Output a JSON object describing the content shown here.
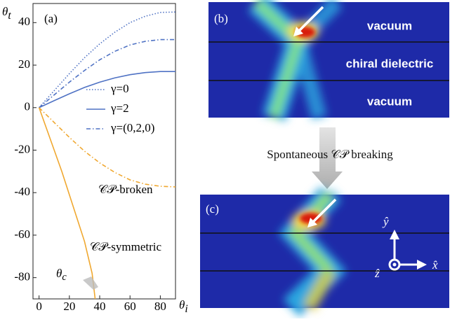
{
  "chart_data": {
    "type": "line",
    "panel_label": "(a)",
    "x_label": {
      "main": "θ",
      "sub": "i"
    },
    "y_label": {
      "main": "θ",
      "sub": "t"
    },
    "xlim": [
      -4,
      90
    ],
    "ylim": [
      -90,
      49
    ],
    "xticks": [
      0,
      20,
      40,
      60,
      80
    ],
    "yticks": [
      40,
      20,
      0,
      -20,
      -40,
      -60,
      -80
    ],
    "series": [
      {
        "name": "γ=0",
        "color": "#4f72c4",
        "style": "dotted",
        "x": [
          0,
          10,
          20,
          30,
          40,
          50,
          60,
          70,
          80,
          90
        ],
        "values": [
          0,
          8,
          16,
          23.5,
          30,
          35.5,
          40,
          43,
          44.8,
          45
        ]
      },
      {
        "name": "γ=2",
        "color": "#4f72c4",
        "style": "solid",
        "x": [
          0,
          10,
          20,
          30,
          40,
          50,
          60,
          70,
          80,
          90
        ],
        "values": [
          0,
          3.3,
          6.5,
          9.5,
          12,
          14,
          15.5,
          16.5,
          17,
          17
        ]
      },
      {
        "name": "γ=(0,2,0)",
        "color": "#4f72c4",
        "style": "dashdot",
        "x": [
          0,
          10,
          20,
          30,
          40,
          50,
          60,
          70,
          80,
          90
        ],
        "values": [
          0,
          6,
          12,
          17.5,
          22.5,
          26.5,
          29.5,
          31.2,
          32,
          32
        ]
      },
      {
        "color": "#f0a830",
        "style": "dashdot",
        "x": [
          0,
          10,
          20,
          30,
          40,
          50,
          60,
          70,
          80,
          90
        ],
        "values": [
          0,
          -7,
          -14,
          -20.5,
          -26,
          -30.5,
          -34,
          -36,
          -37,
          -37.3
        ]
      },
      {
        "color": "#f0a830",
        "style": "solid",
        "x": [
          0,
          5,
          10,
          15,
          20,
          25,
          30,
          35,
          37
        ],
        "values": [
          0,
          -10,
          -20,
          -30,
          -41,
          -52,
          -63,
          -78,
          -90
        ]
      }
    ],
    "annotations": [
      "𝒞𝒫-broken",
      "𝒞𝒫-symmetric"
    ],
    "critical_label": {
      "main": "θ",
      "sub": "c"
    }
  },
  "panels": {
    "b": {
      "label": "(b)",
      "layers": [
        "vacuum",
        "chiral dielectric",
        "vacuum"
      ]
    },
    "caption": "Spontaneous 𝒞𝒫 breaking",
    "c": {
      "label": "(c)",
      "axes": [
        "ŷ",
        "x̂",
        "ẑ"
      ]
    }
  }
}
